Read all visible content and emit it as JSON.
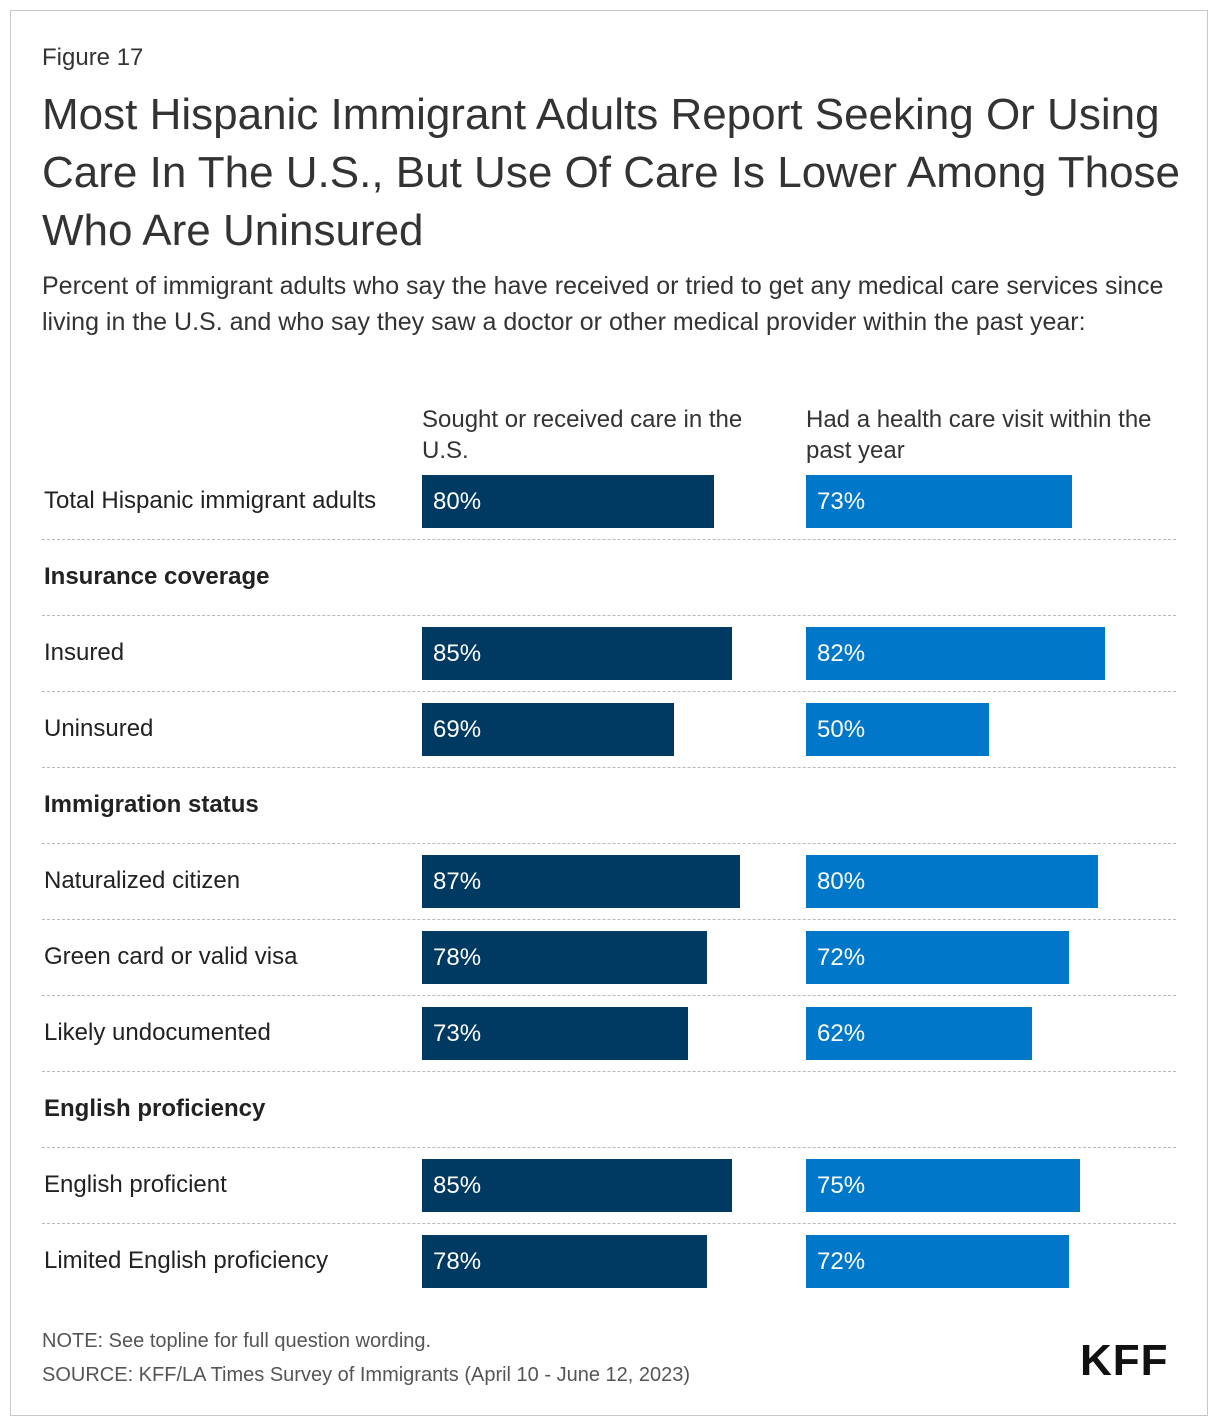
{
  "figure_label": "Figure 17",
  "title": "Most Hispanic Immigrant Adults Report Seeking Or Using Care In The U.S., But Use Of Care Is Lower Among Those Who Are Uninsured",
  "subtitle": "Percent of immigrant adults who say the have received or tried to get any medical care services since living in the U.S. and who say they saw a doctor or other medical provider within the past year:",
  "chart_data": {
    "type": "bar",
    "orientation": "horizontal",
    "title": "Most Hispanic Immigrant Adults Report Seeking Or Using Care In The U.S., But Use Of Care Is Lower Among Those Who Are Uninsured",
    "xlim": [
      0,
      100
    ],
    "unit": "%",
    "series": [
      {
        "name": "Sought or received care in the U.S.",
        "color": "#003a63"
      },
      {
        "name": "Had a health care visit within the past year",
        "color": "#0077c8"
      }
    ],
    "rows": [
      {
        "type": "data",
        "label": "Total Hispanic immigrant adults",
        "values": [
          80,
          73
        ],
        "labels": [
          "80%",
          "73%"
        ]
      },
      {
        "type": "section",
        "label": "Insurance coverage"
      },
      {
        "type": "data",
        "label": "Insured",
        "values": [
          85,
          82
        ],
        "labels": [
          "85%",
          "82%"
        ]
      },
      {
        "type": "data",
        "label": "Uninsured",
        "values": [
          69,
          50
        ],
        "labels": [
          "69%",
          "50%"
        ]
      },
      {
        "type": "section",
        "label": "Immigration status"
      },
      {
        "type": "data",
        "label": "Naturalized citizen",
        "values": [
          87,
          80
        ],
        "labels": [
          "87%",
          "80%"
        ]
      },
      {
        "type": "data",
        "label": "Green card or valid visa",
        "values": [
          78,
          72
        ],
        "labels": [
          "78%",
          "72%"
        ]
      },
      {
        "type": "data",
        "label": "Likely undocumented",
        "values": [
          73,
          62
        ],
        "labels": [
          "73%",
          "62%"
        ]
      },
      {
        "type": "section",
        "label": "English proficiency"
      },
      {
        "type": "data",
        "label": "English proficient",
        "values": [
          85,
          75
        ],
        "labels": [
          "85%",
          "75%"
        ]
      },
      {
        "type": "data",
        "label": "Limited English proficiency",
        "values": [
          78,
          72
        ],
        "labels": [
          "78%",
          "72%"
        ]
      }
    ]
  },
  "footer": {
    "note": "NOTE: See topline for full question wording.",
    "source": "SOURCE: KFF/LA Times Survey of Immigrants (April 10 - June 12, 2023)"
  },
  "logo_text": "KFF"
}
